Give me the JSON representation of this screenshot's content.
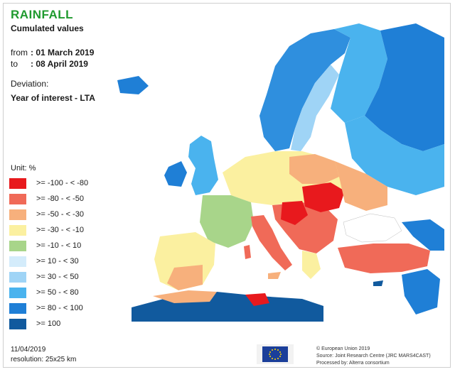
{
  "header": {
    "title": "RAINFALL",
    "subtitle": "Cumulated values",
    "from_label": "from",
    "from_value": ": 01 March 2019",
    "to_label": "to",
    "to_value": ": 08 April 2019",
    "deviation_label": "Deviation:",
    "deviation_value": "Year of interest - LTA"
  },
  "legend": {
    "unit": "Unit:  %",
    "items": [
      {
        "label": ">= -100 - < -80",
        "color": "#e8191d"
      },
      {
        "label": ">= -80 - < -50",
        "color": "#f06a58"
      },
      {
        "label": ">= -50 - < -30",
        "color": "#f7b07c"
      },
      {
        "label": ">= -30 - < -10",
        "color": "#fbf0a0"
      },
      {
        "label": ">= -10 - < 10",
        "color": "#a8d58a"
      },
      {
        "label": ">= 10 - < 30",
        "color": "#d4ecfb"
      },
      {
        "label": ">= 30 - < 50",
        "color": "#9fd4f6"
      },
      {
        "label": ">= 50 - < 80",
        "color": "#4ab3ee"
      },
      {
        "label": ">= 80 - < 100",
        "color": "#1f7fd6"
      },
      {
        "label": ">= 100",
        "color": "#115a9e"
      }
    ]
  },
  "footer": {
    "date": "11/04/2019",
    "resolution": "resolution: 25x25 km",
    "credit_1": "© European Union 2019",
    "credit_2": "Source: Joint Research Centre (JRC MARS4CAST)",
    "credit_3": "Processed by: Alterra consortium"
  },
  "colors": {
    "title": "#1f9a2e",
    "sea": "#ffffff",
    "eu_flag": "#1b3f9a",
    "eu_star": "#ffd700"
  }
}
